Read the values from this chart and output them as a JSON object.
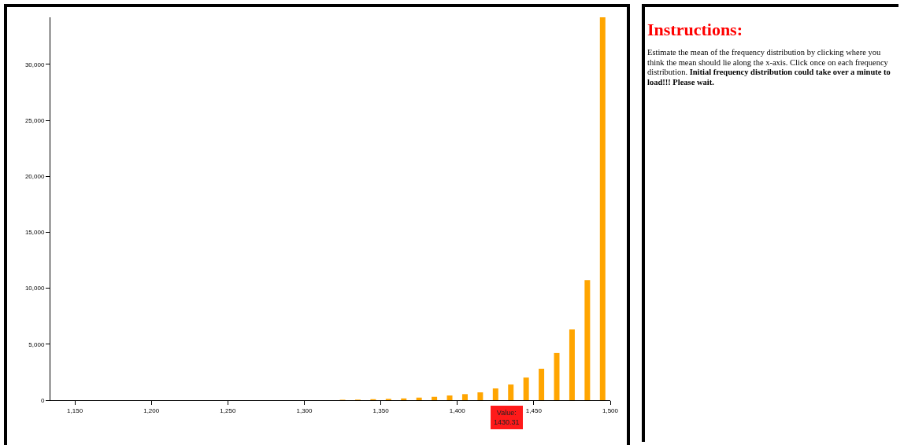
{
  "chart_data": [
    {
      "type": "bar",
      "x": [
        1325,
        1335,
        1345,
        1355,
        1365,
        1375,
        1385,
        1395,
        1405,
        1415,
        1425,
        1435,
        1445,
        1455,
        1465,
        1475,
        1485,
        1495
      ],
      "values": [
        40,
        50,
        90,
        120,
        160,
        230,
        300,
        420,
        540,
        700,
        1050,
        1400,
        2020,
        2810,
        4220,
        6320,
        10730,
        34200
      ],
      "color": "#ffa500",
      "xlim": [
        1134,
        1500
      ],
      "xticks": [
        {
          "value": 1150,
          "label": "1,150"
        },
        {
          "value": 1200,
          "label": "1,200"
        },
        {
          "value": 1250,
          "label": "1,250"
        },
        {
          "value": 1300,
          "label": "1,300"
        },
        {
          "value": 1350,
          "label": "1,350"
        },
        {
          "value": 1400,
          "label": "1,400"
        },
        {
          "value": 1450,
          "label": "1,450"
        },
        {
          "value": 1500,
          "label": "1,500"
        }
      ],
      "ylim": [
        0,
        34200
      ],
      "yticks": [
        0,
        {
          "value": 5000,
          "label": "5,000"
        },
        {
          "value": 10000,
          "label": "10,000"
        },
        {
          "value": 15000,
          "label": "15,000"
        },
        {
          "value": 20000,
          "label": "20,000"
        },
        {
          "value": 25000,
          "label": "25,000"
        },
        {
          "value": 30000,
          "label": "30,000"
        }
      ],
      "grid": false,
      "annotations": [
        "Value:\n1430.31"
      ]
    },
    {
      "type": "other",
      "title": "Instructions:",
      "annotations": [
        "Estimate the mean of the frequency distribution by clicking where you think the mean should lie along the x-axis. Click once on each frequency distribution.",
        "Initial frequency distribution could take over a minute to load!!! Please wait."
      ]
    }
  ]
}
